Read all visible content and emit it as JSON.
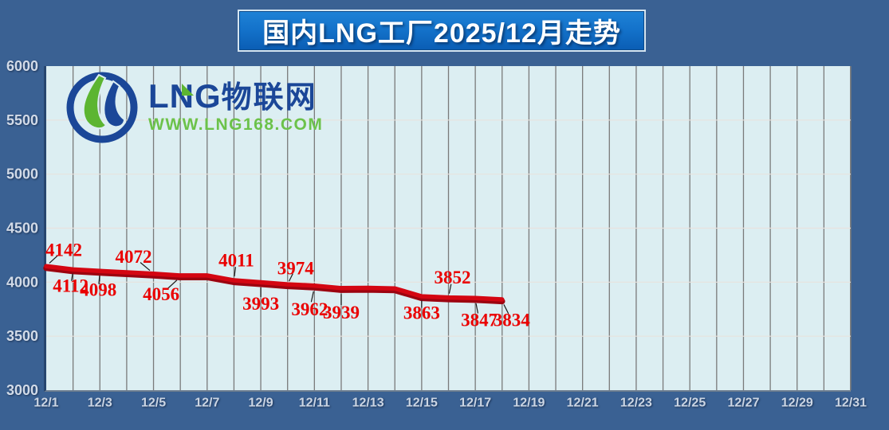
{
  "title": {
    "text": "国内LNG工厂2025/12月走势"
  },
  "watermark": {
    "letter_l": "L",
    "letter_n": "N",
    "letter_g": "G",
    "brand_cn": "物联网",
    "url": "WWW.LNG168.COM"
  },
  "colors": {
    "background": "#3a6193",
    "plot_background": "#dceef2",
    "grid_vertical": "#7a7a7a",
    "grid_horizontal": "#e8e2de",
    "line_main": "#d40612",
    "line_shade": "#9c0310",
    "data_label": "#ea0000",
    "leader_line": "#1a1a1a",
    "y_axis_text": "#d2dbe8",
    "x_axis_text": "#ccd6e4",
    "title_text": "#ffffff",
    "title_border": "#d4e4f0",
    "title_gradient_top": "#1e82d6",
    "title_gradient_bottom": "#0a5db4",
    "logo_blue": "#1b4798",
    "logo_green": "#5cb531",
    "logo_url_green": "#6cc24a"
  },
  "chart_data": {
    "type": "line",
    "title": "国内LNG工厂2025/12月走势",
    "xlabel": "",
    "ylabel": "",
    "ylim": [
      3000,
      6000
    ],
    "y_ticks": [
      3000,
      3500,
      4000,
      4500,
      5000,
      5500,
      6000
    ],
    "x_days_total": 31,
    "x_tick_days": [
      1,
      3,
      5,
      7,
      9,
      11,
      13,
      15,
      17,
      19,
      21,
      23,
      25,
      27,
      29,
      31
    ],
    "x_tick_labels": [
      "12/1",
      "12/3",
      "12/5",
      "12/7",
      "12/9",
      "12/11",
      "12/13",
      "12/15",
      "12/17",
      "12/19",
      "12/21",
      "12/23",
      "12/25",
      "12/27",
      "12/29",
      "12/31"
    ],
    "grid": true,
    "legend_position": "none",
    "series": [
      {
        "points": [
          {
            "day": 1,
            "value": 4142,
            "label": "4142",
            "side": "above",
            "dx": 22,
            "dy": -21
          },
          {
            "day": 2,
            "value": 4112,
            "label": "4112",
            "side": "below",
            "dx": -3,
            "dy": 20
          },
          {
            "day": 3,
            "value": 4098,
            "label": "4098",
            "side": "below",
            "dx": -2,
            "dy": 23
          },
          {
            "day": 4,
            "value": 4085
          },
          {
            "day": 5,
            "value": 4072,
            "label": "4072",
            "side": "above",
            "dx": -25,
            "dy": -22
          },
          {
            "day": 6,
            "value": 4056,
            "label": "4056",
            "side": "below",
            "dx": -24,
            "dy": 23
          },
          {
            "day": 7,
            "value": 4056
          },
          {
            "day": 8,
            "value": 4011,
            "label": "4011",
            "side": "above",
            "dx": 3,
            "dy": -26
          },
          {
            "day": 9,
            "value": 3993,
            "label": "3993",
            "side": "below",
            "dx": 0,
            "dy": 26
          },
          {
            "day": 10,
            "value": 3974,
            "label": "3974",
            "side": "above",
            "dx": 10,
            "dy": -21
          },
          {
            "day": 11,
            "value": 3962,
            "label": "3962",
            "side": "below",
            "dx": -6,
            "dy": 29
          },
          {
            "day": 12,
            "value": 3939,
            "label": "3939",
            "side": "below",
            "dx": 0,
            "dy": 30
          },
          {
            "day": 13,
            "value": 3941
          },
          {
            "day": 14,
            "value": 3936
          },
          {
            "day": 15,
            "value": 3863,
            "label": "3863",
            "side": "below",
            "dx": 0,
            "dy": 20
          },
          {
            "day": 16,
            "value": 3852,
            "label": "3852",
            "side": "above",
            "dx": 5,
            "dy": -26
          },
          {
            "day": 17,
            "value": 3847,
            "label": "3847",
            "side": "below",
            "dx": 5,
            "dy": 27
          },
          {
            "day": 18,
            "value": 3834,
            "label": "3834",
            "side": "below",
            "dx": 12,
            "dy": 25
          }
        ]
      }
    ]
  }
}
